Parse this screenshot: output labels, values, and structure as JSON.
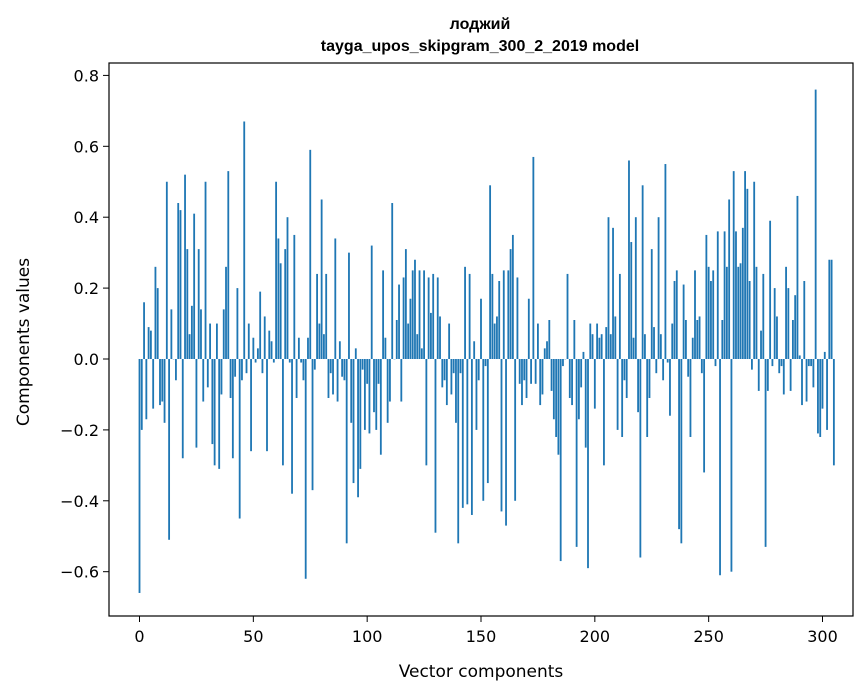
{
  "chart_data": {
    "type": "bar",
    "title": "лоджий",
    "subtitle": "tayga_upos_skipgram_300_2_2019 model",
    "xlabel": "Vector components",
    "ylabel": "Components values",
    "xlim": [
      -13.4,
      313.4
    ],
    "ylim": [
      -0.725,
      0.835
    ],
    "x_ticks": [
      0,
      50,
      100,
      150,
      200,
      250,
      300
    ],
    "y_ticks": [
      -0.6,
      -0.4,
      -0.2,
      0.0,
      0.2,
      0.4,
      0.6,
      0.8
    ],
    "x_tick_labels": [
      "0",
      "50",
      "100",
      "150",
      "200",
      "250",
      "300"
    ],
    "y_tick_labels": [
      "−0.6",
      "−0.4",
      "−0.2",
      "0.0",
      "0.2",
      "0.4",
      "0.6",
      "0.8"
    ],
    "bar_color": "#1f77b4",
    "grid": false,
    "legend": "none",
    "values": [
      -0.66,
      -0.2,
      0.16,
      -0.17,
      0.09,
      0.08,
      -0.14,
      0.26,
      0.2,
      -0.13,
      -0.12,
      -0.18,
      0.5,
      -0.51,
      0.14,
      0.0,
      -0.06,
      0.44,
      0.42,
      -0.28,
      0.52,
      0.31,
      0.07,
      0.15,
      0.41,
      -0.25,
      0.31,
      0.14,
      -0.12,
      0.5,
      -0.08,
      0.1,
      -0.24,
      -0.3,
      0.1,
      -0.31,
      -0.1,
      0.14,
      0.26,
      0.53,
      -0.11,
      -0.28,
      -0.05,
      0.2,
      -0.45,
      -0.06,
      0.67,
      -0.04,
      0.1,
      -0.26,
      0.06,
      -0.01,
      0.03,
      0.19,
      -0.04,
      0.12,
      -0.26,
      0.08,
      0.05,
      -0.01,
      0.5,
      0.34,
      0.27,
      -0.3,
      0.31,
      0.4,
      -0.01,
      -0.38,
      0.35,
      -0.11,
      0.06,
      -0.01,
      -0.06,
      -0.62,
      0.06,
      0.59,
      -0.37,
      -0.03,
      0.24,
      0.1,
      0.45,
      0.07,
      0.24,
      -0.11,
      -0.04,
      -0.1,
      0.34,
      -0.12,
      0.05,
      -0.05,
      -0.06,
      -0.52,
      0.3,
      -0.18,
      -0.35,
      0.03,
      -0.39,
      -0.31,
      -0.03,
      -0.2,
      -0.07,
      -0.21,
      0.32,
      -0.15,
      -0.2,
      -0.07,
      -0.27,
      0.25,
      0.06,
      -0.18,
      -0.12,
      0.44,
      0.0,
      0.11,
      0.21,
      -0.12,
      0.23,
      0.31,
      0.1,
      0.17,
      0.25,
      0.28,
      0.07,
      0.25,
      0.03,
      0.25,
      -0.3,
      0.23,
      0.13,
      0.24,
      -0.49,
      0.23,
      0.12,
      -0.08,
      -0.06,
      -0.13,
      0.1,
      -0.1,
      -0.04,
      -0.18,
      -0.52,
      -0.04,
      -0.42,
      0.26,
      -0.41,
      0.24,
      -0.44,
      0.05,
      -0.2,
      -0.06,
      0.17,
      -0.4,
      -0.02,
      -0.35,
      0.49,
      0.24,
      0.1,
      0.12,
      0.22,
      -0.43,
      0.25,
      -0.47,
      0.25,
      0.31,
      0.35,
      -0.4,
      0.23,
      -0.07,
      -0.13,
      -0.06,
      -0.11,
      0.17,
      -0.07,
      0.57,
      -0.07,
      0.1,
      -0.13,
      -0.1,
      0.03,
      0.05,
      0.11,
      -0.09,
      -0.17,
      -0.22,
      -0.27,
      -0.57,
      -0.02,
      0.0,
      0.24,
      -0.11,
      -0.13,
      0.11,
      -0.53,
      -0.17,
      -0.08,
      0.02,
      -0.25,
      -0.59,
      0.1,
      0.07,
      -0.14,
      0.1,
      0.06,
      0.07,
      -0.3,
      0.09,
      0.4,
      0.07,
      0.37,
      0.12,
      -0.2,
      0.24,
      -0.22,
      -0.06,
      -0.11,
      0.56,
      0.33,
      0.06,
      0.4,
      -0.15,
      -0.56,
      0.49,
      0.07,
      -0.22,
      -0.11,
      0.31,
      0.09,
      -0.04,
      0.4,
      0.07,
      -0.06,
      0.55,
      -0.01,
      -0.16,
      0.1,
      0.22,
      0.25,
      -0.48,
      -0.52,
      0.21,
      0.11,
      -0.05,
      -0.22,
      0.06,
      0.25,
      0.11,
      0.12,
      -0.04,
      -0.32,
      0.35,
      0.26,
      0.22,
      0.25,
      -0.02,
      0.36,
      -0.61,
      0.11,
      0.36,
      0.26,
      0.45,
      -0.6,
      0.53,
      0.36,
      0.26,
      0.27,
      0.37,
      0.53,
      0.48,
      0.22,
      -0.03,
      0.5,
      0.26,
      -0.09,
      0.08,
      0.24,
      -0.53,
      -0.09,
      0.39,
      -0.02,
      0.2,
      0.12,
      -0.04,
      -0.02,
      -0.1,
      0.26,
      0.2,
      -0.09,
      0.11,
      0.18,
      0.46,
      0.01,
      -0.13,
      0.22,
      -0.12,
      -0.02,
      -0.02,
      -0.08,
      0.76,
      -0.21,
      -0.22,
      -0.14,
      0.02,
      -0.2,
      0.28,
      0.28,
      -0.3
    ]
  }
}
